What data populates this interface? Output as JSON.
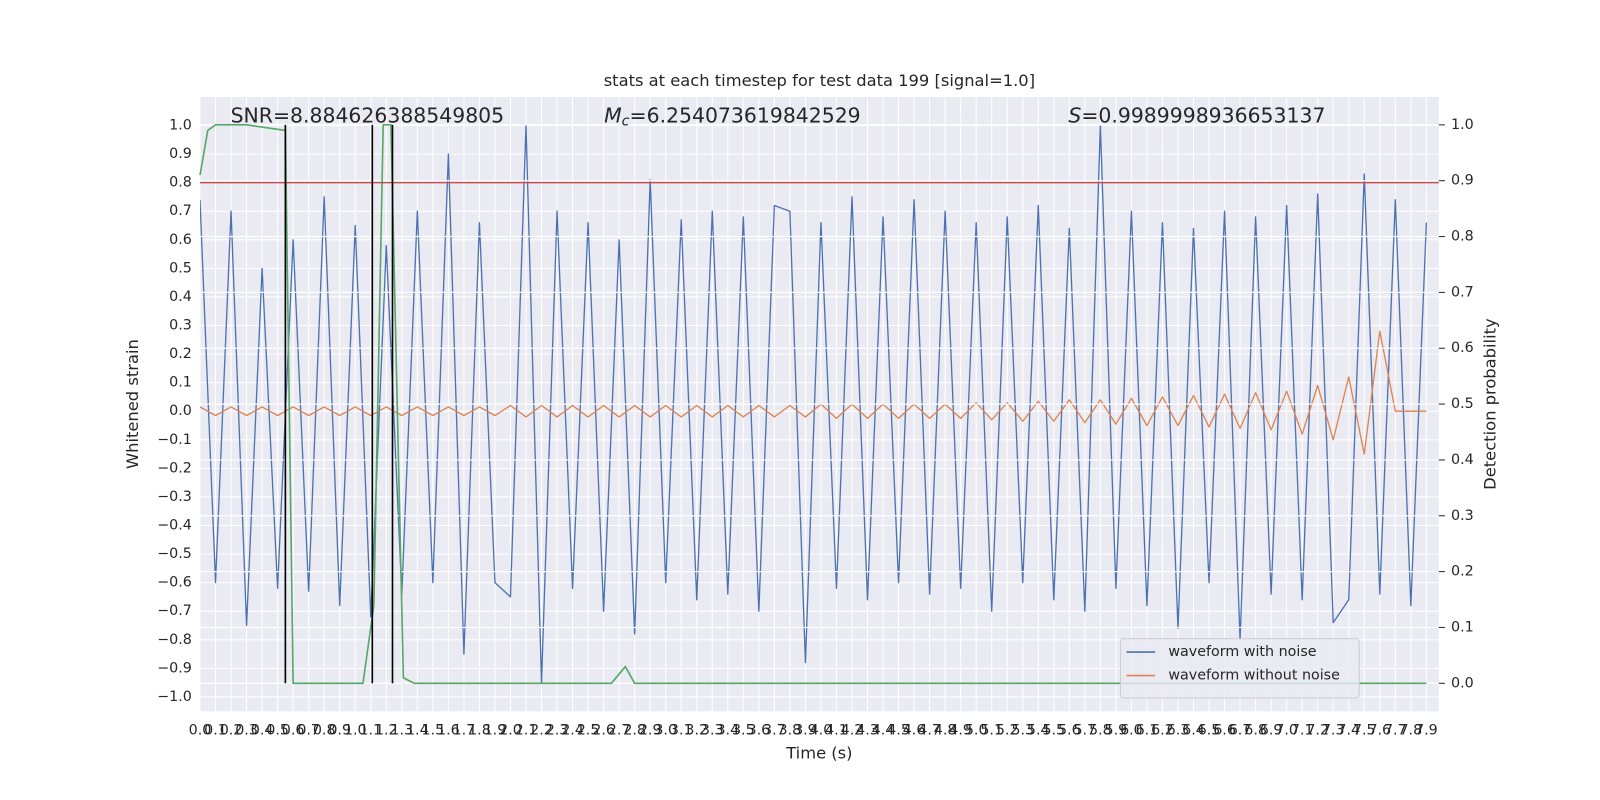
{
  "chart_data": {
    "type": "line",
    "title": "stats at each timestep for test data 199 [signal=1.0]",
    "xlabel": "Time (s)",
    "ylabel": "Whitened strain",
    "y2label": "Detection probability",
    "annotations": [
      {
        "text": "SNR=8.884626388549805"
      },
      {
        "symbol": "M",
        "subscript": "c",
        "text": "=6.254073619842529"
      },
      {
        "symbol": "S",
        "text": "=0.9989998936653137"
      }
    ],
    "x": [
      0,
      0.1,
      0.2,
      0.3,
      0.4,
      0.5,
      0.6,
      0.7,
      0.8,
      0.9,
      1,
      1.1,
      1.2,
      1.3,
      1.4,
      1.5,
      1.6,
      1.7,
      1.8,
      1.9,
      2,
      2.1,
      2.2,
      2.3,
      2.4,
      2.5,
      2.6,
      2.7,
      2.8,
      2.9,
      3,
      3.1,
      3.2,
      3.3,
      3.4,
      3.5,
      3.6,
      3.7,
      3.8,
      3.9,
      4,
      4.1,
      4.2,
      4.3,
      4.4,
      4.5,
      4.6,
      4.7,
      4.8,
      4.9,
      5,
      5.1,
      5.2,
      5.3,
      5.4,
      5.5,
      5.6,
      5.7,
      5.8,
      5.9,
      6,
      6.1,
      6.2,
      6.3,
      6.4,
      6.5,
      6.6,
      6.7,
      6.8,
      6.9,
      7,
      7.1,
      7.2,
      7.3,
      7.4,
      7.5,
      7.6,
      7.7,
      7.8,
      7.9
    ],
    "series": [
      {
        "name": "waveform with noise",
        "color": "#4c72b0",
        "values": [
          0.74,
          -0.6,
          0.7,
          -0.75,
          0.5,
          -0.62,
          0.6,
          -0.63,
          0.75,
          -0.68,
          0.65,
          -0.72,
          0.58,
          -0.64,
          0.7,
          -0.6,
          0.9,
          -0.85,
          0.66,
          -0.6,
          -0.65,
          1.0,
          -0.95,
          0.7,
          -0.62,
          0.66,
          -0.7,
          0.6,
          -0.78,
          0.81,
          -0.6,
          0.67,
          -0.66,
          0.7,
          -0.64,
          0.68,
          -0.7,
          0.72,
          0.7,
          -0.88,
          0.66,
          -0.62,
          0.75,
          -0.66,
          0.68,
          -0.6,
          0.74,
          -0.64,
          0.7,
          -0.62,
          0.66,
          -0.7,
          0.68,
          -0.6,
          0.72,
          -0.66,
          0.64,
          -0.7,
          1.0,
          -0.62,
          0.7,
          -0.68,
          0.66,
          -0.76,
          0.64,
          -0.6,
          0.7,
          -0.8,
          0.68,
          -0.64,
          0.72,
          -0.66,
          0.76,
          -0.74,
          -0.66,
          0.83,
          -0.64,
          0.74,
          -0.68,
          0.66
        ]
      },
      {
        "name": "waveform without noise",
        "color": "#dd8452",
        "values": [
          0.015,
          -0.015,
          0.015,
          -0.015,
          0.015,
          -0.015,
          0.015,
          -0.015,
          0.015,
          -0.015,
          0.015,
          -0.015,
          0.015,
          -0.015,
          0.015,
          -0.015,
          0.015,
          -0.015,
          0.015,
          -0.015,
          0.02,
          -0.02,
          0.02,
          -0.02,
          0.02,
          -0.02,
          0.02,
          -0.02,
          0.02,
          -0.02,
          0.02,
          -0.02,
          0.02,
          -0.02,
          0.02,
          -0.02,
          0.02,
          -0.02,
          0.02,
          -0.02,
          0.025,
          -0.025,
          0.025,
          -0.025,
          0.025,
          -0.025,
          0.025,
          -0.025,
          0.025,
          -0.025,
          0.03,
          -0.03,
          0.03,
          -0.035,
          0.035,
          -0.035,
          0.04,
          -0.04,
          0.04,
          -0.045,
          0.045,
          -0.05,
          0.05,
          -0.05,
          0.055,
          -0.055,
          0.06,
          -0.06,
          0.065,
          -0.065,
          0.07,
          -0.08,
          0.09,
          -0.1,
          0.12,
          -0.15,
          0.28,
          0,
          0,
          0
        ]
      },
      {
        "color": "#55a868",
        "axis": "y2",
        "x": [
          0,
          0.05,
          0.1,
          0.3,
          0.55,
          0.6,
          1.05,
          1.12,
          1.18,
          1.23,
          1.31,
          1.38,
          2.65,
          2.74,
          2.8,
          7.9
        ],
        "values": [
          0.91,
          0.99,
          1.0,
          1.0,
          0.99,
          0.0,
          0.0,
          0.14,
          1.0,
          1.0,
          0.01,
          0.0,
          0.0,
          0.03,
          0.0,
          0.0
        ]
      }
    ],
    "hline": {
      "value": 0.8,
      "color": "#c44e52"
    },
    "vlines": {
      "x": [
        0.55,
        1.11,
        1.24
      ],
      "ymin": 0,
      "ymax": 1,
      "axis": "y2",
      "color": "#000000"
    },
    "xlim": [
      0,
      7.98
    ],
    "ylim": [
      -1.05,
      1.1
    ],
    "y2lim": [
      -0.05,
      1.05
    ],
    "xticks": [
      {
        "value": 0,
        "label": "0.0"
      },
      0.1,
      0.2,
      0.3,
      0.4,
      0.5,
      0.6,
      0.7,
      0.8,
      0.9,
      {
        "value": 1,
        "label": "1.0"
      },
      1.1,
      1.2,
      1.3,
      1.4,
      1.5,
      1.6,
      1.7,
      1.8,
      1.9,
      {
        "value": 2,
        "label": "2.0"
      },
      2.1,
      2.2,
      2.3,
      2.4,
      2.5,
      2.6,
      2.7,
      2.8,
      2.9,
      {
        "value": 3,
        "label": "3.0"
      },
      3.1,
      3.2,
      3.3,
      3.4,
      3.5,
      3.6,
      3.7,
      3.8,
      3.9,
      {
        "value": 4,
        "label": "4.0"
      },
      4.1,
      4.2,
      4.3,
      4.4,
      4.5,
      4.6,
      4.7,
      4.8,
      4.9,
      {
        "value": 5,
        "label": "5.0"
      },
      5.1,
      5.2,
      5.3,
      5.4,
      5.5,
      5.6,
      5.7,
      5.8,
      5.9,
      {
        "value": 6,
        "label": "6.0"
      },
      6.1,
      6.2,
      6.3,
      6.4,
      6.5,
      6.6,
      6.7,
      6.8,
      6.9,
      {
        "value": 7,
        "label": "7.0"
      },
      7.1,
      7.2,
      7.3,
      7.4,
      7.5,
      7.6,
      7.7,
      7.8,
      7.9
    ],
    "yticks": [
      {
        "value": -1,
        "label": "−1.0"
      },
      {
        "value": -0.9,
        "label": "−0.9"
      },
      {
        "value": -0.8,
        "label": "−0.8"
      },
      {
        "value": -0.7,
        "label": "−0.7"
      },
      {
        "value": -0.6,
        "label": "−0.6"
      },
      {
        "value": -0.5,
        "label": "−0.5"
      },
      {
        "value": -0.4,
        "label": "−0.4"
      },
      {
        "value": -0.3,
        "label": "−0.3"
      },
      {
        "value": -0.2,
        "label": "−0.2"
      },
      {
        "value": -0.1,
        "label": "−0.1"
      },
      {
        "value": 0,
        "label": "0.0"
      },
      0.1,
      0.2,
      0.3,
      0.4,
      0.5,
      0.6,
      0.7,
      0.8,
      0.9,
      {
        "value": 1,
        "label": "1.0"
      }
    ],
    "y2ticks": [
      {
        "value": 0,
        "label": "0.0"
      },
      0.1,
      0.2,
      0.3,
      0.4,
      0.5,
      0.6,
      0.7,
      0.8,
      0.9,
      {
        "value": 1,
        "label": "1.0"
      }
    ],
    "grid": true,
    "legend": "lower right"
  }
}
